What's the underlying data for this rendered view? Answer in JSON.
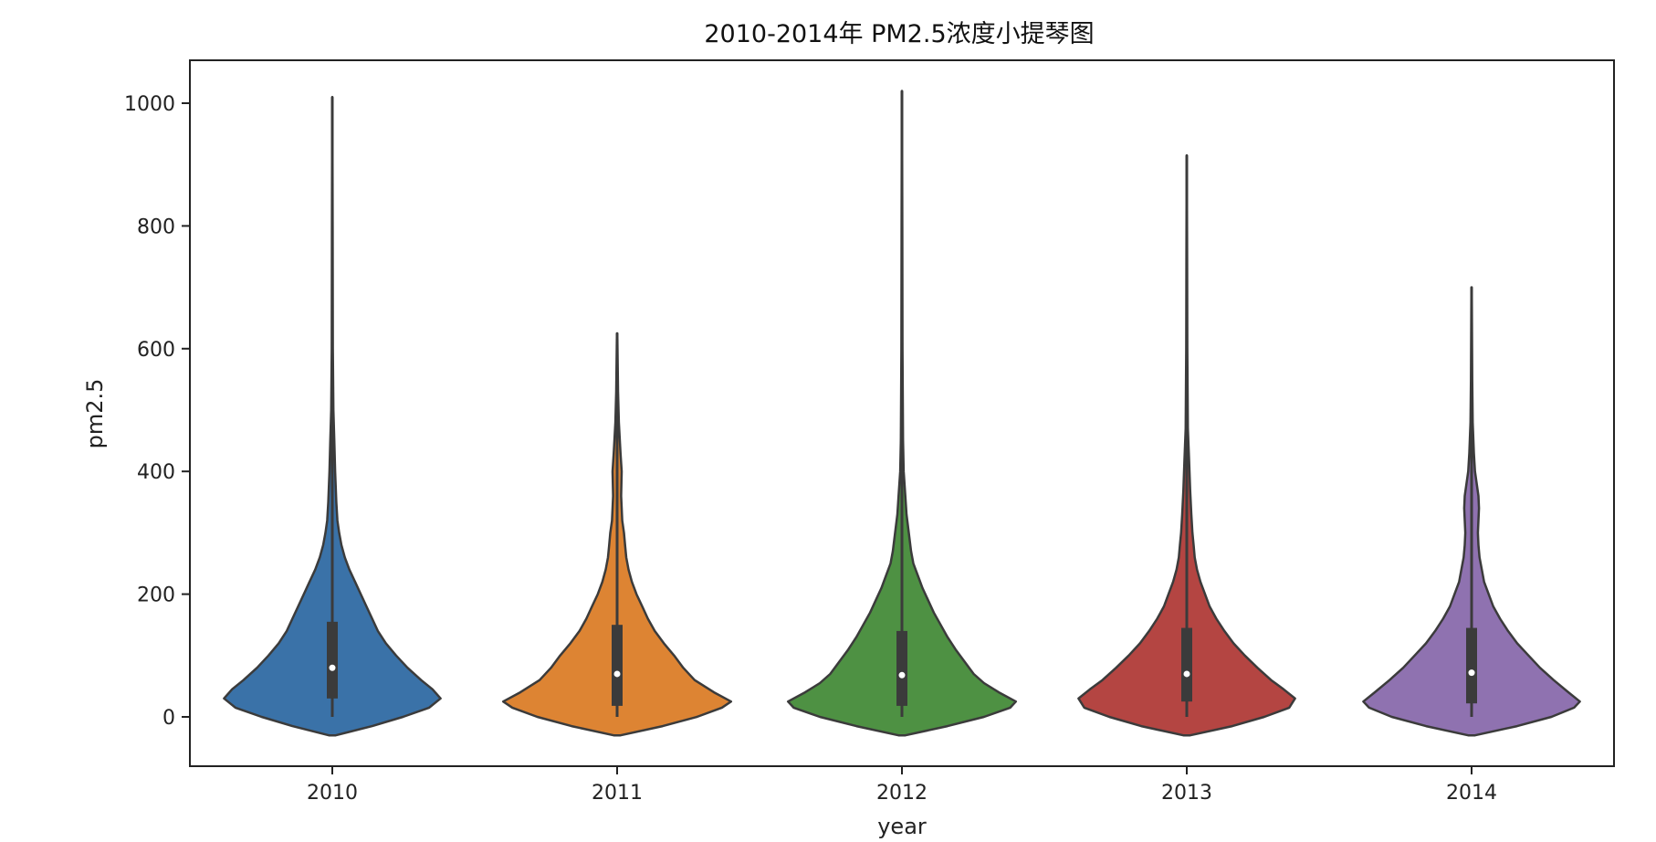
{
  "chart_data": {
    "type": "violin",
    "title": "2010-2014年 PM2.5浓度小提琴图",
    "xlabel": "year",
    "ylabel": "pm2.5",
    "ylim": [
      -80,
      1070
    ],
    "yticks": [
      "0",
      "200",
      "400",
      "600",
      "800",
      "1000"
    ],
    "ytick_values": [
      0,
      200,
      400,
      600,
      800,
      1000
    ],
    "grid": false,
    "categories": [
      "2010",
      "2011",
      "2012",
      "2013",
      "2014"
    ],
    "series": [
      {
        "category": "2010",
        "color": "#3a72a8",
        "min": 0,
        "q1": 30,
        "median": 80,
        "q3": 155,
        "whisker_high": 320,
        "max": 1010,
        "density": [
          [
            -30,
            0.03
          ],
          [
            -15,
            0.35
          ],
          [
            0,
            0.62
          ],
          [
            15,
            0.85
          ],
          [
            30,
            0.95
          ],
          [
            45,
            0.88
          ],
          [
            60,
            0.78
          ],
          [
            80,
            0.66
          ],
          [
            100,
            0.56
          ],
          [
            120,
            0.47
          ],
          [
            140,
            0.4
          ],
          [
            160,
            0.35
          ],
          [
            180,
            0.3
          ],
          [
            200,
            0.25
          ],
          [
            220,
            0.2
          ],
          [
            240,
            0.15
          ],
          [
            260,
            0.11
          ],
          [
            280,
            0.08
          ],
          [
            300,
            0.06
          ],
          [
            320,
            0.045
          ],
          [
            350,
            0.035
          ],
          [
            400,
            0.025
          ],
          [
            450,
            0.018
          ],
          [
            500,
            0.01
          ],
          [
            600,
            0.005
          ],
          [
            800,
            0.003
          ],
          [
            1010,
            0.001
          ]
        ]
      },
      {
        "category": "2011",
        "color": "#dd8433",
        "min": 0,
        "q1": 18,
        "median": 70,
        "q3": 150,
        "whisker_high": 310,
        "max": 625,
        "density": [
          [
            -30,
            0.03
          ],
          [
            -15,
            0.4
          ],
          [
            0,
            0.7
          ],
          [
            15,
            0.92
          ],
          [
            25,
            1.0
          ],
          [
            40,
            0.85
          ],
          [
            60,
            0.68
          ],
          [
            80,
            0.58
          ],
          [
            100,
            0.5
          ],
          [
            120,
            0.41
          ],
          [
            140,
            0.33
          ],
          [
            160,
            0.27
          ],
          [
            180,
            0.22
          ],
          [
            200,
            0.17
          ],
          [
            220,
            0.13
          ],
          [
            240,
            0.1
          ],
          [
            260,
            0.08
          ],
          [
            280,
            0.07
          ],
          [
            300,
            0.06
          ],
          [
            320,
            0.045
          ],
          [
            360,
            0.035
          ],
          [
            400,
            0.04
          ],
          [
            430,
            0.03
          ],
          [
            480,
            0.015
          ],
          [
            530,
            0.008
          ],
          [
            625,
            0.002
          ]
        ]
      },
      {
        "category": "2012",
        "color": "#4e9143",
        "min": 0,
        "q1": 18,
        "median": 68,
        "q3": 140,
        "whisker_high": 295,
        "max": 1020,
        "density": [
          [
            -30,
            0.03
          ],
          [
            -15,
            0.4
          ],
          [
            0,
            0.72
          ],
          [
            15,
            0.95
          ],
          [
            25,
            1.0
          ],
          [
            40,
            0.85
          ],
          [
            55,
            0.72
          ],
          [
            70,
            0.63
          ],
          [
            90,
            0.55
          ],
          [
            110,
            0.47
          ],
          [
            130,
            0.4
          ],
          [
            150,
            0.34
          ],
          [
            170,
            0.28
          ],
          [
            190,
            0.23
          ],
          [
            210,
            0.18
          ],
          [
            230,
            0.14
          ],
          [
            250,
            0.1
          ],
          [
            270,
            0.08
          ],
          [
            300,
            0.06
          ],
          [
            330,
            0.04
          ],
          [
            360,
            0.03
          ],
          [
            400,
            0.015
          ],
          [
            450,
            0.01
          ],
          [
            600,
            0.005
          ],
          [
            800,
            0.003
          ],
          [
            1020,
            0.001
          ]
        ]
      },
      {
        "category": "2013",
        "color": "#b44542",
        "min": 0,
        "q1": 25,
        "median": 70,
        "q3": 145,
        "whisker_high": 295,
        "max": 915,
        "density": [
          [
            -30,
            0.03
          ],
          [
            -15,
            0.4
          ],
          [
            0,
            0.68
          ],
          [
            15,
            0.9
          ],
          [
            30,
            0.95
          ],
          [
            45,
            0.85
          ],
          [
            60,
            0.74
          ],
          [
            80,
            0.62
          ],
          [
            100,
            0.51
          ],
          [
            120,
            0.41
          ],
          [
            140,
            0.33
          ],
          [
            160,
            0.26
          ],
          [
            180,
            0.2
          ],
          [
            200,
            0.16
          ],
          [
            220,
            0.12
          ],
          [
            240,
            0.09
          ],
          [
            260,
            0.07
          ],
          [
            280,
            0.06
          ],
          [
            300,
            0.05
          ],
          [
            330,
            0.04
          ],
          [
            370,
            0.03
          ],
          [
            420,
            0.02
          ],
          [
            470,
            0.01
          ],
          [
            600,
            0.005
          ],
          [
            750,
            0.003
          ],
          [
            915,
            0.001
          ]
        ]
      },
      {
        "category": "2014",
        "color": "#8f72b0",
        "min": 0,
        "q1": 22,
        "median": 72,
        "q3": 145,
        "whisker_high": 292,
        "max": 700,
        "density": [
          [
            -30,
            0.03
          ],
          [
            -15,
            0.4
          ],
          [
            0,
            0.7
          ],
          [
            15,
            0.9
          ],
          [
            25,
            0.95
          ],
          [
            40,
            0.85
          ],
          [
            60,
            0.72
          ],
          [
            80,
            0.6
          ],
          [
            100,
            0.5
          ],
          [
            120,
            0.4
          ],
          [
            140,
            0.32
          ],
          [
            160,
            0.25
          ],
          [
            180,
            0.19
          ],
          [
            200,
            0.15
          ],
          [
            220,
            0.11
          ],
          [
            240,
            0.09
          ],
          [
            260,
            0.07
          ],
          [
            280,
            0.06
          ],
          [
            300,
            0.055
          ],
          [
            320,
            0.06
          ],
          [
            340,
            0.065
          ],
          [
            360,
            0.06
          ],
          [
            380,
            0.045
          ],
          [
            400,
            0.03
          ],
          [
            430,
            0.02
          ],
          [
            480,
            0.01
          ],
          [
            550,
            0.006
          ],
          [
            700,
            0.002
          ]
        ]
      }
    ]
  }
}
